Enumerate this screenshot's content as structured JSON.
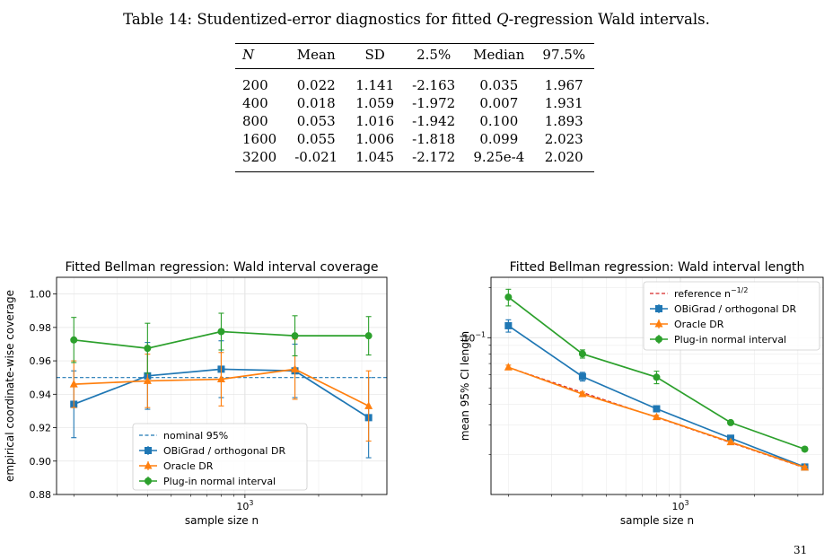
{
  "caption": {
    "prefix": "Table 14: Studentized-error diagnostics for fitted ",
    "symbol": "Q",
    "suffix": "-regression Wald intervals."
  },
  "table": {
    "headers": [
      "N",
      "Mean",
      "SD",
      "2.5%",
      "Median",
      "97.5%"
    ],
    "rows": [
      [
        "200",
        "0.022",
        "1.141",
        "-2.163",
        "0.035",
        "1.967"
      ],
      [
        "400",
        "0.018",
        "1.059",
        "-1.972",
        "0.007",
        "1.931"
      ],
      [
        "800",
        "0.053",
        "1.016",
        "-1.942",
        "0.100",
        "1.893"
      ],
      [
        "1600",
        "0.055",
        "1.006",
        "-1.818",
        "0.099",
        "2.023"
      ],
      [
        "3200",
        "-0.021",
        "1.045",
        "-2.172",
        "9.25e-4",
        "2.020"
      ]
    ]
  },
  "page_number": "31",
  "chart_data": [
    {
      "type": "line",
      "title": "Fitted Bellman regression: Wald interval coverage",
      "xlabel": "sample size n",
      "ylabel": "empirical coordinate-wise coverage",
      "x_scale": "log",
      "x": [
        200,
        400,
        800,
        1600,
        3200
      ],
      "xlim": [
        170,
        3800
      ],
      "ylim": [
        0.88,
        1.01
      ],
      "yticks": [
        0.88,
        0.9,
        0.92,
        0.94,
        0.96,
        0.98,
        1.0
      ],
      "ytick_labels": [
        "0.88",
        "0.90",
        "0.92",
        "0.94",
        "0.96",
        "0.98",
        "1.00"
      ],
      "xtick_label": {
        "base": "10",
        "exp": "3"
      },
      "grid": true,
      "legend_position": "lower-center",
      "reference_line": {
        "name": "nominal 95%",
        "value": 0.95,
        "color": "#1f77b4"
      },
      "series": [
        {
          "name": "OBiGrad / orthogonal DR",
          "color": "#1f77b4",
          "marker": "square",
          "values": [
            0.934,
            0.951,
            0.955,
            0.954,
            0.926
          ],
          "err": [
            0.02,
            0.02,
            0.017,
            0.016,
            0.024
          ]
        },
        {
          "name": "Oracle DR",
          "color": "#ff7f0e",
          "marker": "triangle",
          "values": [
            0.946,
            0.948,
            0.949,
            0.955,
            0.933
          ],
          "err": [
            0.014,
            0.016,
            0.016,
            0.018,
            0.021
          ]
        },
        {
          "name": "Plug-in normal interval",
          "color": "#2ca02c",
          "marker": "circle",
          "values": [
            0.9725,
            0.9675,
            0.9775,
            0.975,
            0.975
          ],
          "err": [
            0.0135,
            0.015,
            0.011,
            0.012,
            0.0115
          ]
        }
      ]
    },
    {
      "type": "line",
      "title": "Fitted Bellman regression: Wald interval length",
      "xlabel": "sample size n",
      "ylabel": "mean 95% CI length",
      "x_scale": "log",
      "y_scale": "log",
      "x": [
        200,
        400,
        800,
        1600,
        3200
      ],
      "xlim": [
        170,
        3800
      ],
      "ylim": [
        0.0115,
        0.23
      ],
      "ytick": {
        "value": 0.1,
        "base": "10",
        "exp": "−1"
      },
      "xtick_label": {
        "base": "10",
        "exp": "3"
      },
      "grid": true,
      "legend_position": "upper-right",
      "reference_line": {
        "name": "reference n",
        "exp": "−1/2",
        "color": "#d62728",
        "values": [
          0.0665,
          0.047,
          0.0333,
          0.0235,
          0.0166
        ]
      },
      "series": [
        {
          "name": "OBiGrad / orthogonal DR",
          "color": "#1f77b4",
          "marker": "square",
          "values": [
            0.118,
            0.0585,
            0.0375,
            0.025,
            0.0168
          ],
          "err": [
            0.01,
            0.0035,
            0.0015,
            0.0006,
            0.0004
          ]
        },
        {
          "name": "Oracle DR",
          "color": "#ff7f0e",
          "marker": "triangle",
          "values": [
            0.0665,
            0.046,
            0.0335,
            0.0237,
            0.0167
          ],
          "err": [
            0.002,
            0.0012,
            0.0008,
            0.0004,
            0.0003
          ]
        },
        {
          "name": "Plug-in normal interval",
          "color": "#2ca02c",
          "marker": "circle",
          "values": [
            0.175,
            0.08,
            0.058,
            0.031,
            0.0215
          ],
          "err": [
            0.02,
            0.0045,
            0.005,
            0.0008,
            0.0006
          ]
        }
      ]
    }
  ]
}
